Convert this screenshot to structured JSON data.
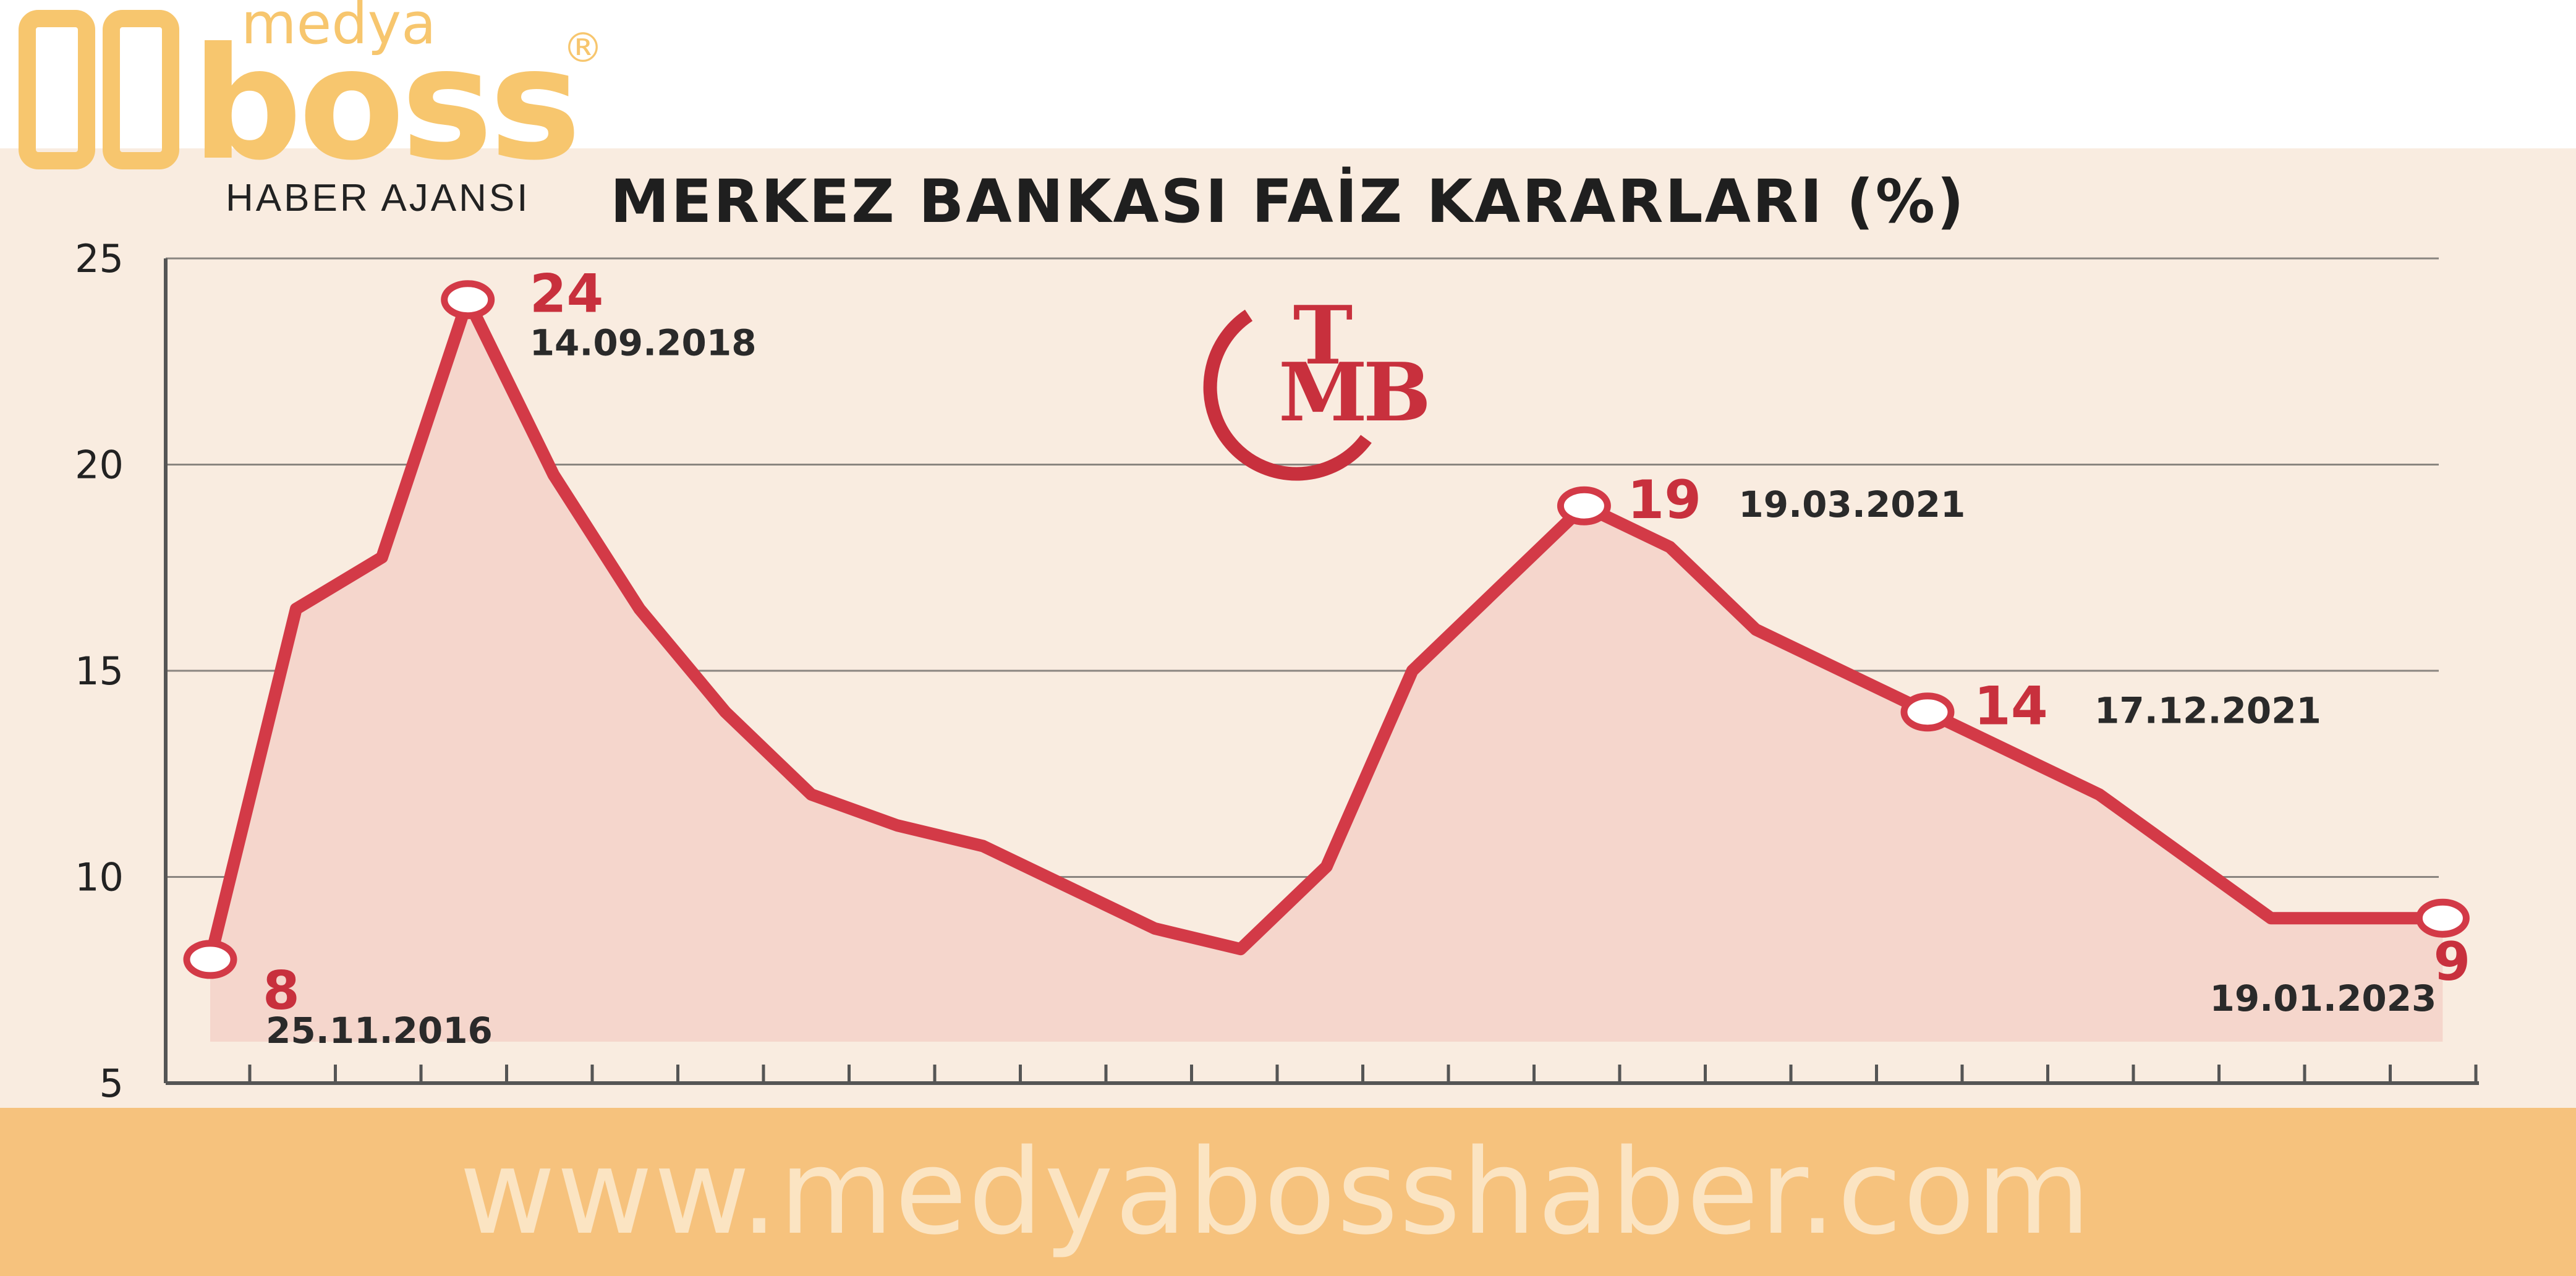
{
  "logo": {
    "top_text": "medya",
    "main_text": "boss",
    "registered": "®",
    "sub_text": "HABER AJANSI",
    "color": "#f7c66e"
  },
  "emblem": {
    "letters": "TCMB",
    "color": "#c8303d"
  },
  "footer": {
    "url": "www.medyabosshaber.com",
    "bg": "#f6c27d",
    "text_color": "#fbe4c2"
  },
  "chart_data": {
    "type": "area",
    "title": "MERKEZ BANKASI FAİZ KARARLARI (%)",
    "xlabel": "",
    "ylabel": "",
    "ylim": [
      5,
      25
    ],
    "yticks": [
      5,
      10,
      15,
      20,
      25
    ],
    "grid": true,
    "line_color": "#d33a47",
    "fill_color": "#f5d6cc",
    "x_tick_count": 27,
    "series": [
      {
        "values": [
          8,
          16.5,
          17.75,
          24,
          19.75,
          16.5,
          14,
          12,
          11.25,
          10.75,
          9.75,
          8.75,
          8.25,
          10.25,
          15,
          17,
          19,
          18,
          16,
          15,
          14,
          13,
          12,
          10.5,
          9,
          9,
          9
        ]
      }
    ],
    "annotations": [
      {
        "index": 0,
        "value": "8",
        "date": "25.11.2016"
      },
      {
        "index": 3,
        "value": "24",
        "date": "14.09.2018"
      },
      {
        "index": 16,
        "value": "19",
        "date": "19.03.2021"
      },
      {
        "index": 20,
        "value": "14",
        "date": "17.12.2021"
      },
      {
        "index": 26,
        "value": "9",
        "date": "19.01.2023"
      }
    ]
  }
}
